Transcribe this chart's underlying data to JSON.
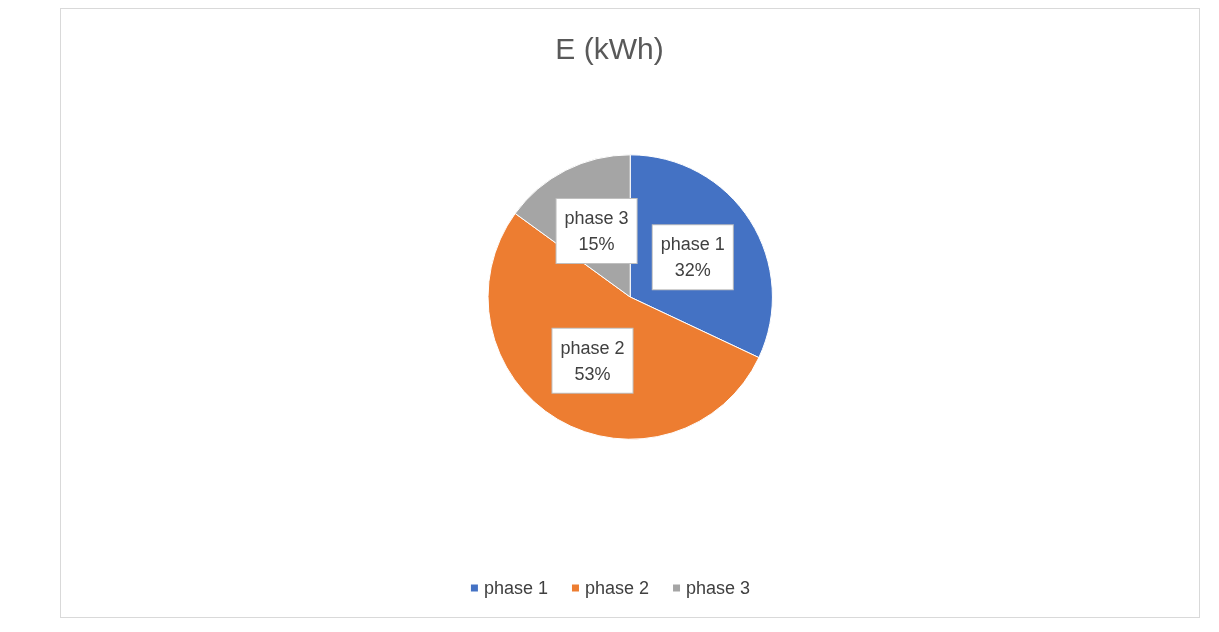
{
  "chart_data": {
    "type": "pie",
    "title": "E (kWh)",
    "categories": [
      "phase 1",
      "phase 2",
      "phase 3"
    ],
    "values": [
      32,
      53,
      15
    ],
    "colors": [
      "#4472c4",
      "#ed7d31",
      "#a5a5a5"
    ],
    "value_labels": [
      "32%",
      "53%",
      "15%"
    ],
    "legend": "bottom"
  }
}
